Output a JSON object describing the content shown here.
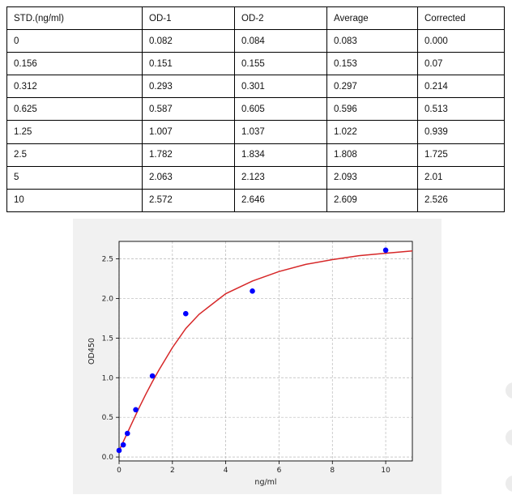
{
  "table": {
    "headers": [
      "STD.(ng/ml)",
      "OD-1",
      "OD-2",
      "Average",
      "Corrected"
    ],
    "rows": [
      [
        "0",
        "0.082",
        "0.084",
        "0.083",
        "0.000"
      ],
      [
        "0.156",
        "0.151",
        "0.155",
        "0.153",
        "0.07"
      ],
      [
        "0.312",
        "0.293",
        "0.301",
        "0.297",
        "0.214"
      ],
      [
        "0.625",
        "0.587",
        "0.605",
        "0.596",
        "0.513"
      ],
      [
        "1.25",
        "1.007",
        "1.037",
        "1.022",
        "0.939"
      ],
      [
        "2.5",
        "1.782",
        "1.834",
        "1.808",
        "1.725"
      ],
      [
        "5",
        "2.063",
        "2.123",
        "2.093",
        "2.01"
      ],
      [
        "10",
        "2.572",
        "2.646",
        "2.609",
        "2.526"
      ]
    ]
  },
  "chart_data": {
    "type": "scatter",
    "title": "",
    "xlabel": "ng/ml",
    "ylabel": "OD450",
    "xlim": [
      0,
      11
    ],
    "ylim": [
      -0.05,
      2.72
    ],
    "xticks": [
      0,
      2,
      4,
      6,
      8,
      10
    ],
    "yticks": [
      0.0,
      0.5,
      1.0,
      1.5,
      2.0,
      2.5
    ],
    "xtick_labels": [
      "0",
      "2",
      "4",
      "6",
      "8",
      "10"
    ],
    "ytick_labels": [
      "0.0",
      "0.5",
      "1.0",
      "1.5",
      "2.0",
      "2.5"
    ],
    "grid": true,
    "points": {
      "x": [
        0,
        0.156,
        0.312,
        0.625,
        1.25,
        2.5,
        5,
        10
      ],
      "y": [
        0.083,
        0.153,
        0.297,
        0.596,
        1.022,
        1.808,
        2.093,
        2.609
      ],
      "color": "#0000ff"
    },
    "fit_curve": {
      "x": [
        0,
        0.25,
        0.5,
        0.75,
        1,
        1.25,
        1.5,
        2,
        2.5,
        3,
        4,
        5,
        6,
        7,
        8,
        9,
        10,
        11
      ],
      "y": [
        0.08,
        0.26,
        0.44,
        0.62,
        0.79,
        0.95,
        1.1,
        1.38,
        1.62,
        1.8,
        2.06,
        2.22,
        2.34,
        2.43,
        2.49,
        2.54,
        2.57,
        2.6
      ],
      "color": "#d62728"
    }
  },
  "colors": {
    "panel_background": "#f1f1f1",
    "plot_background": "#ffffff",
    "grid": "#b8b8b8"
  }
}
